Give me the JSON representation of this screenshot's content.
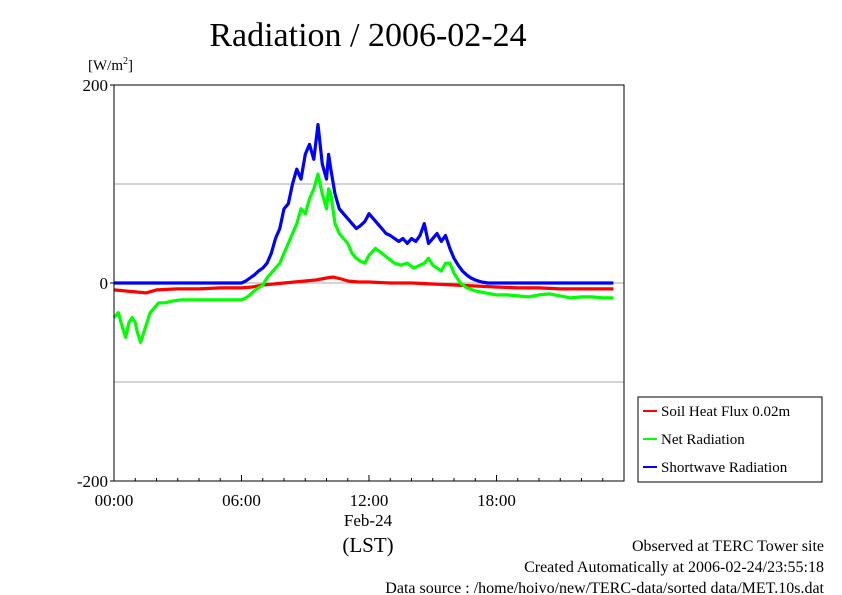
{
  "chart_data": {
    "type": "line",
    "title": "Radiation / 2006-02-24",
    "yunit": "[W/m",
    "yunit_sup": "2",
    "yunit_close": "]",
    "ylim": [
      -200,
      200
    ],
    "yticks": [
      -200,
      0,
      200
    ],
    "y_gridlines": [
      -100,
      0,
      100
    ],
    "xlim": [
      0,
      24
    ],
    "xticks": [
      {
        "value": 0,
        "label": "00:00"
      },
      {
        "value": 6,
        "label": "06:00"
      },
      {
        "value": 12,
        "label": "12:00"
      },
      {
        "value": 18,
        "label": "18:00"
      }
    ],
    "date_label": "Feb-24",
    "xlabel": "(LST)",
    "grid": "horizontal",
    "legend_position": "bottom-right",
    "series": [
      {
        "name": "Soil Heat Flux 0.02m",
        "color": "#ff0000",
        "x": [
          0,
          0.5,
          1,
          1.5,
          2,
          3,
          4,
          5,
          6,
          6.5,
          7,
          7.5,
          8,
          8.5,
          9,
          9.5,
          10,
          10.3,
          10.7,
          11,
          11.5,
          12,
          13,
          14,
          15,
          16,
          17,
          18,
          19,
          20,
          21,
          22,
          23,
          23.5
        ],
        "y": [
          -7,
          -8,
          -9,
          -10,
          -7,
          -6,
          -6,
          -5,
          -5,
          -4,
          -2,
          -1,
          0,
          1,
          2,
          3,
          5,
          6,
          4,
          2,
          1,
          1,
          0,
          0,
          -1,
          -2,
          -3,
          -4,
          -5,
          -5,
          -6,
          -6,
          -6,
          -6
        ]
      },
      {
        "name": "Net Radiation",
        "color": "#00ff00",
        "x": [
          0,
          0.2,
          0.4,
          0.55,
          0.7,
          0.85,
          1.0,
          1.1,
          1.25,
          1.4,
          1.55,
          1.7,
          1.9,
          2.1,
          2.4,
          2.8,
          3.2,
          3.6,
          4.0,
          4.5,
          5.0,
          5.5,
          6.0,
          6.2,
          6.4,
          6.6,
          6.8,
          7.0,
          7.2,
          7.4,
          7.6,
          7.8,
          8.0,
          8.2,
          8.4,
          8.6,
          8.8,
          9.0,
          9.2,
          9.4,
          9.6,
          9.8,
          10.0,
          10.1,
          10.2,
          10.4,
          10.6,
          10.8,
          11.0,
          11.2,
          11.4,
          11.6,
          11.8,
          12.0,
          12.3,
          12.6,
          12.9,
          13.2,
          13.5,
          13.8,
          14.1,
          14.4,
          14.6,
          14.8,
          15.0,
          15.2,
          15.4,
          15.6,
          15.8,
          16.0,
          16.3,
          16.6,
          17.0,
          17.5,
          18.0,
          18.5,
          19.0,
          19.5,
          20.0,
          20.5,
          21.0,
          21.5,
          22.0,
          22.5,
          23.0,
          23.5
        ],
        "y": [
          -35,
          -30,
          -45,
          -55,
          -40,
          -35,
          -40,
          -50,
          -60,
          -50,
          -40,
          -30,
          -25,
          -20,
          -20,
          -18,
          -17,
          -17,
          -17,
          -17,
          -17,
          -17,
          -17,
          -15,
          -12,
          -8,
          -5,
          -2,
          5,
          10,
          15,
          20,
          30,
          40,
          50,
          60,
          75,
          70,
          85,
          95,
          110,
          90,
          75,
          95,
          90,
          60,
          50,
          45,
          40,
          30,
          25,
          22,
          20,
          28,
          35,
          30,
          25,
          20,
          18,
          20,
          15,
          18,
          20,
          25,
          18,
          15,
          12,
          20,
          20,
          10,
          0,
          -5,
          -8,
          -10,
          -12,
          -12,
          -13,
          -14,
          -12,
          -11,
          -13,
          -15,
          -14,
          -14,
          -15,
          -15
        ]
      },
      {
        "name": "Shortwave Radiation",
        "color": "#0000ff",
        "x": [
          0,
          1,
          2,
          3,
          4,
          5,
          6,
          6.2,
          6.4,
          6.6,
          6.8,
          7.0,
          7.2,
          7.4,
          7.6,
          7.8,
          8.0,
          8.2,
          8.4,
          8.6,
          8.8,
          9.0,
          9.2,
          9.4,
          9.6,
          9.8,
          10.0,
          10.1,
          10.2,
          10.4,
          10.6,
          10.8,
          11.0,
          11.2,
          11.4,
          11.6,
          11.8,
          12.0,
          12.2,
          12.4,
          12.6,
          12.8,
          13.0,
          13.2,
          13.4,
          13.6,
          13.8,
          14.0,
          14.2,
          14.4,
          14.6,
          14.8,
          15.0,
          15.2,
          15.4,
          15.6,
          15.8,
          16.0,
          16.2,
          16.4,
          16.6,
          16.8,
          17.0,
          17.3,
          17.6,
          18,
          19,
          20,
          21,
          22,
          23,
          23.5
        ],
        "y": [
          0,
          0,
          0,
          0,
          0,
          0,
          0,
          2,
          5,
          8,
          12,
          15,
          20,
          30,
          45,
          55,
          75,
          80,
          100,
          115,
          105,
          130,
          140,
          125,
          160,
          120,
          105,
          130,
          115,
          90,
          75,
          70,
          65,
          60,
          55,
          58,
          62,
          70,
          65,
          60,
          55,
          50,
          48,
          45,
          42,
          45,
          40,
          45,
          42,
          48,
          60,
          40,
          45,
          50,
          42,
          48,
          35,
          25,
          18,
          12,
          8,
          5,
          3,
          1,
          0,
          0,
          0,
          0,
          0,
          0,
          0,
          0
        ]
      }
    ]
  },
  "footer": {
    "line1": "Observed at TERC Tower site",
    "line2": "Created Automatically at 2006-02-24/23:55:18",
    "line3": "Data source : /home/hoivo/new/TERC-data/sorted  data/MET.10s.dat"
  },
  "colors": {
    "grid": "#aaaaaa",
    "frame": "#000000"
  }
}
